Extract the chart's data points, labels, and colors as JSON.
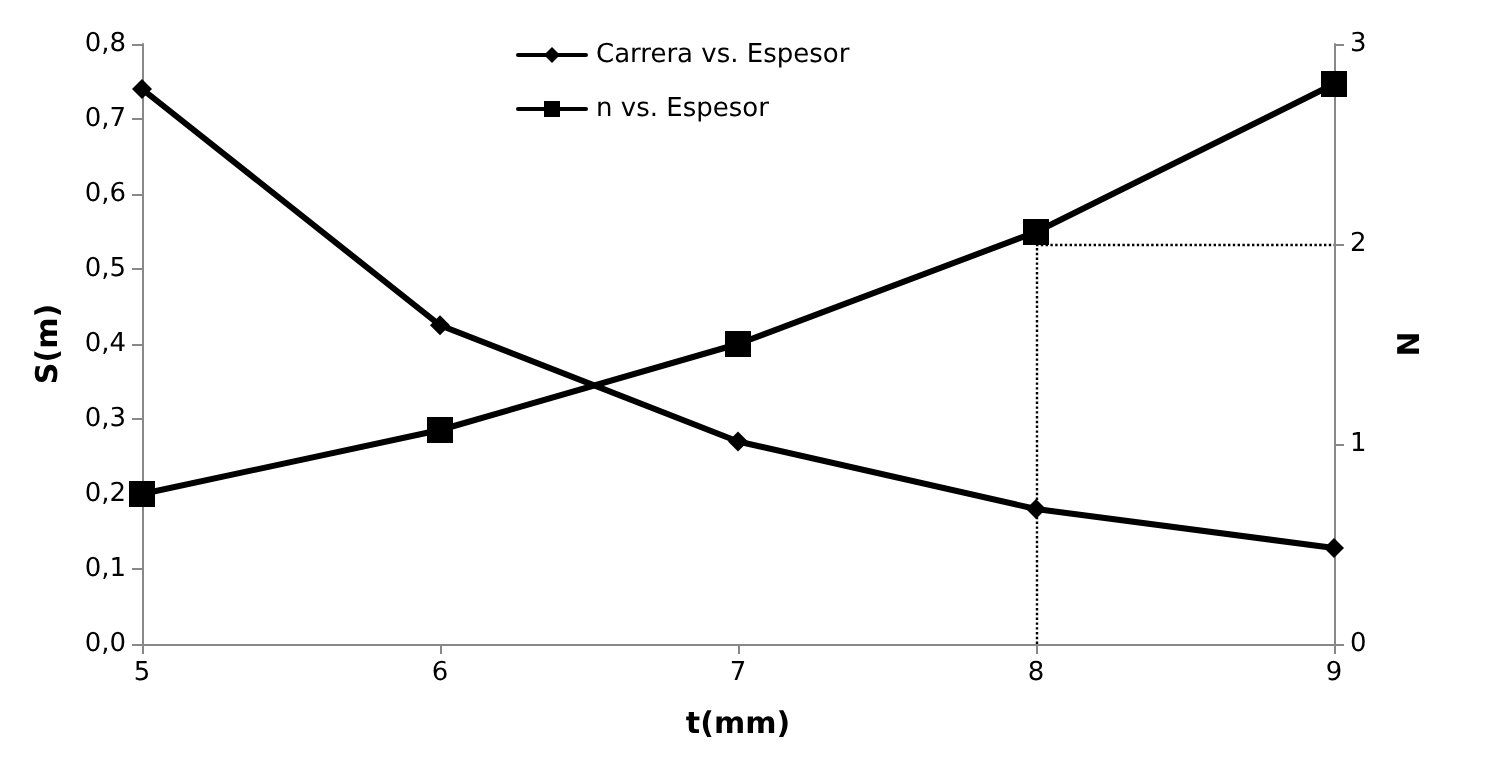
{
  "chart_data": {
    "type": "line",
    "xlabel": "t(mm)",
    "ylabel": "S(m)",
    "y2label": "N",
    "x": [
      5,
      6,
      7,
      8,
      9
    ],
    "series": [
      {
        "name": "Carrera vs. Espesor",
        "color": "#000000",
        "marker": "diamond",
        "values": [
          0.74,
          0.425,
          0.27,
          0.18,
          0.128
        ]
      },
      {
        "name": "n vs. Espesor",
        "color": "#000000",
        "marker": "square",
        "axis": "y2",
        "values": [
          0.75,
          1.07,
          1.5,
          2.06,
          2.8
        ]
      }
    ],
    "xlim": [
      5,
      9
    ],
    "xticks": [
      5,
      6,
      7,
      8,
      9
    ],
    "ylim": [
      0,
      0.8
    ],
    "yticks": [
      {
        "value": 0,
        "label": "0,0"
      },
      {
        "value": 0.1,
        "label": "0,1"
      },
      {
        "value": 0.2,
        "label": "0,2"
      },
      {
        "value": 0.3,
        "label": "0,3"
      },
      {
        "value": 0.4,
        "label": "0,4"
      },
      {
        "value": 0.5,
        "label": "0,5"
      },
      {
        "value": 0.6,
        "label": "0,6"
      },
      {
        "value": 0.7,
        "label": "0,7"
      },
      {
        "value": 0.8,
        "label": "0,8"
      }
    ],
    "y2lim": [
      0,
      3
    ],
    "y2ticks": [
      0,
      1,
      2,
      3
    ],
    "ref_lines": [
      {
        "axis": "x",
        "value": 8,
        "line_style": "dotted"
      },
      {
        "axis": "y2",
        "value": 2,
        "line_style": "dotted"
      }
    ],
    "legend": "top",
    "grid": false,
    "line_style": "solid"
  }
}
